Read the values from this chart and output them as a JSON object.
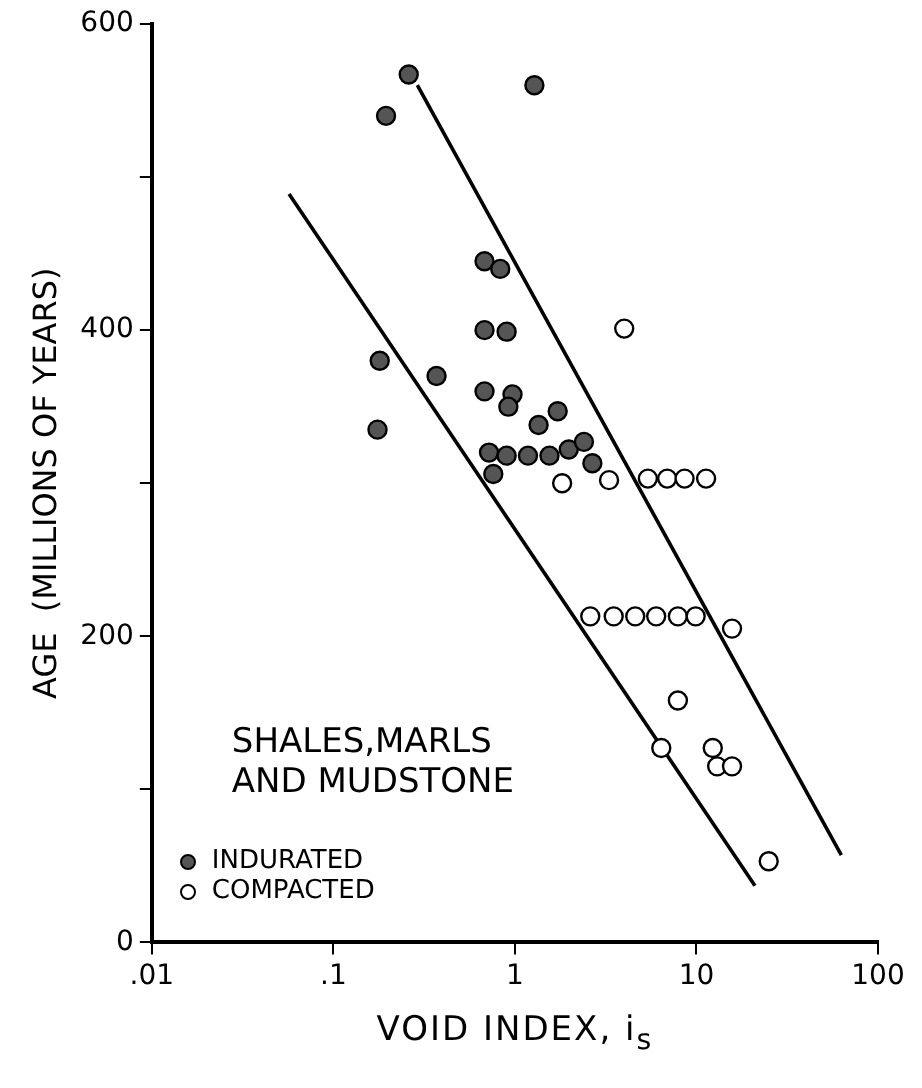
{
  "chart_data": {
    "type": "scatter",
    "xlabel": "VOID INDEX, i$_{s}$",
    "ylabel": "AGE  (MILLIONS OF YEARS)",
    "legend_title": "SHALES,MARLS AND MUDSTONE",
    "log": "x",
    "xlim": [
      0.01,
      100
    ],
    "ylim": [
      0,
      600
    ],
    "xticks": [
      {
        "value": 0.01,
        "label": ".01"
      },
      {
        "value": 0.1,
        "label": ".1"
      },
      1,
      10,
      100
    ],
    "yticks": [
      0,
      {
        "value": 100,
        "label": null
      },
      200,
      {
        "value": 300,
        "label": null
      },
      400,
      {
        "value": 500,
        "label": null
      },
      600
    ],
    "grid": false,
    "legend": "bottom left",
    "marker": "circle",
    "series": [
      {
        "name": "INDURATED",
        "color": "#555555",
        "x": [
          0.26,
          1.28,
          0.195,
          0.68,
          0.83,
          0.68,
          0.9,
          0.18,
          0.37,
          0.68,
          0.97,
          0.92,
          1.72,
          1.35,
          0.175,
          0.72,
          0.9,
          1.18,
          1.55,
          1.98,
          2.4,
          2.67,
          0.76
        ],
        "values": [
          567,
          560,
          540,
          445,
          440,
          400,
          399,
          380,
          370,
          360,
          358,
          350,
          347,
          338,
          335,
          320,
          318,
          318,
          318,
          322,
          327,
          313,
          306
        ]
      },
      {
        "name": "COMPACTED",
        "color": "#ffffff",
        "x": [
          4.0,
          1.82,
          3.3,
          5.4,
          6.9,
          8.6,
          11.3,
          2.6,
          3.5,
          4.6,
          6.0,
          7.9,
          9.9,
          15.7,
          7.9,
          6.4,
          12.3,
          13,
          15.7,
          25
        ],
        "values": [
          401,
          300,
          302,
          303,
          303,
          303,
          303,
          213,
          213,
          213,
          213,
          213,
          213,
          205,
          158,
          127,
          127,
          115,
          115,
          53
        ]
      },
      {
        "type": "line",
        "color": "#000000",
        "marker": "none",
        "x": [
          0.29,
          62.8
        ],
        "values": [
          560,
          57
        ]
      },
      {
        "type": "line",
        "color": "#000000",
        "marker": "none",
        "x": [
          0.057,
          21
        ],
        "values": [
          489,
          37
        ]
      }
    ]
  }
}
